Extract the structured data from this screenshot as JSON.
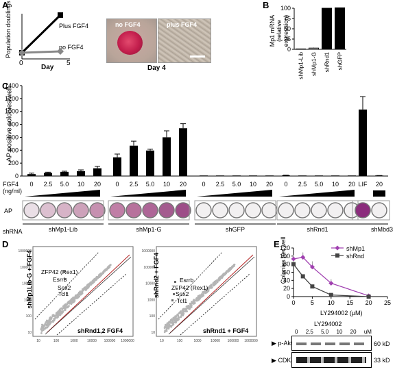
{
  "panels": {
    "A": "A",
    "B": "B",
    "C": "C",
    "D": "D",
    "E": "E"
  },
  "panel_a": {
    "ylabel": "Population doublings",
    "xlabel": "Day",
    "x_ticks": [
      "0",
      "5"
    ],
    "line_labels": [
      "Plus FGF4",
      "no FGF4"
    ],
    "photo_labels": [
      "no FGF4",
      "plus FGF4"
    ],
    "photo_caption": "Day 4"
  },
  "panel_b": {
    "ylabel": "Mp1 mRNA",
    "ylabel2": "(relative expression)"
  },
  "panel_c": {
    "ylabel": "AP positive colonies/well",
    "fgf4_label": "FGF4",
    "fgf4_units": "(ng/ml)",
    "ap_label": "AP",
    "shrna_label": "shRNA",
    "dose_ticks": [
      "0",
      "2.5",
      "5.0",
      "10",
      "20"
    ],
    "lif_label": "LIF",
    "last_label": "20",
    "groups": [
      "shMp1-Lib",
      "shMp1-G",
      "shGFP",
      "shRnd1",
      "shMbd3"
    ]
  },
  "panel_d": {
    "left": {
      "ylabel": "shMp1Lib-G + FGF4",
      "xlabel": "shRnd1,2 FGF4",
      "genes": [
        "ZFP42 (Rex1)",
        "Esrrb",
        "Sox2",
        "Tcl1"
      ]
    },
    "right": {
      "ylabel": "shRnd2 + FGF4",
      "xlabel": "shRnd1 + FGF4",
      "genes": [
        "Esrrb",
        "ZFP42 (Rex1)",
        "Sox2",
        "Tcl1"
      ]
    },
    "y_ticks": [
      "1000000",
      "100000",
      "10000",
      "1000",
      "100",
      "10"
    ],
    "x_ticks": [
      "10",
      "100",
      "1000",
      "10000",
      "100000",
      "1000000"
    ]
  },
  "panel_e": {
    "blot_title": "LY294002",
    "blot_doses": [
      "0",
      "2.5",
      "5.0",
      "10",
      "20",
      "uM"
    ],
    "blot_rows": [
      {
        "label": "p-Akt",
        "size": "60 kD"
      },
      {
        "label": "CDK4",
        "size": "33 kD"
      }
    ]
  },
  "chart_data": [
    {
      "type": "line",
      "title": "",
      "xlabel": "Day",
      "ylabel": "Population doublings",
      "xlim": [
        0,
        5
      ],
      "series": [
        {
          "name": "Plus FGF4",
          "x": [
            0,
            4
          ],
          "y": [
            0,
            5.5
          ],
          "color": "#000000"
        },
        {
          "name": "no FGF4",
          "x": [
            0,
            4
          ],
          "y": [
            0,
            0.2
          ],
          "color": "#888888"
        }
      ]
    },
    {
      "type": "bar",
      "ylabel": "Mp1 mRNA (relative expression)",
      "ylim": [
        0,
        100
      ],
      "y_ticks": [
        "0",
        "25",
        "50",
        "75",
        "100"
      ],
      "categories": [
        "shMp1-Lib",
        "shMp1-G",
        "shRnd1",
        "shGFP"
      ],
      "values": [
        1,
        3,
        100,
        101
      ],
      "errors": [
        0,
        1,
        0,
        0
      ]
    },
    {
      "type": "bar",
      "ylabel": "AP positive colonies/well",
      "ylim": [
        0,
        1400
      ],
      "y_ticks": [
        "0",
        "200",
        "400",
        "600",
        "800",
        "1000",
        "1200",
        "1400"
      ],
      "categories": [
        "shMp1-Lib 0",
        "shMp1-Lib 2.5",
        "shMp1-Lib 5.0",
        "shMp1-Lib 10",
        "shMp1-Lib 20",
        "shMp1-G 0",
        "shMp1-G 2.5",
        "shMp1-G 5.0",
        "shMp1-G 10",
        "shMp1-G 20",
        "shGFP 0",
        "shGFP 2.5",
        "shGFP 5.0",
        "shGFP 10",
        "shGFP 20",
        "shRnd1 0",
        "shRnd1 2.5",
        "shRnd1 5.0",
        "shRnd1 10",
        "shRnd1 20",
        "shMbd3 LIF",
        "shMbd3 20"
      ],
      "values": [
        30,
        50,
        65,
        75,
        120,
        290,
        470,
        395,
        600,
        740,
        2,
        2,
        2,
        2,
        2,
        10,
        2,
        2,
        2,
        2,
        1030,
        5
      ],
      "errors": [
        15,
        10,
        10,
        20,
        30,
        50,
        70,
        20,
        100,
        70,
        0,
        0,
        0,
        0,
        0,
        5,
        0,
        0,
        0,
        0,
        200,
        3
      ]
    },
    {
      "type": "line",
      "xlabel": "LY294002 (µM)",
      "ylabel": "Colonies per well",
      "xlim": [
        0,
        25
      ],
      "ylim": [
        0,
        120
      ],
      "x_ticks": [
        "0",
        "5",
        "10",
        "15",
        "20",
        "25"
      ],
      "y_ticks": [
        "0",
        "20",
        "40",
        "60",
        "80",
        "100",
        "120"
      ],
      "series": [
        {
          "name": "shMp1",
          "x": [
            0,
            2.5,
            5,
            10,
            20
          ],
          "y": [
            93,
            97,
            73,
            33,
            2
          ],
          "errors": [
            10,
            12,
            14,
            10,
            0
          ],
          "color": "#a040b0"
        },
        {
          "name": "shRnd",
          "x": [
            0,
            2.5,
            5,
            10,
            20
          ],
          "y": [
            80,
            50,
            25,
            4,
            0
          ],
          "errors": [
            8,
            0,
            0,
            0,
            0
          ],
          "color": "#444444"
        }
      ]
    }
  ]
}
